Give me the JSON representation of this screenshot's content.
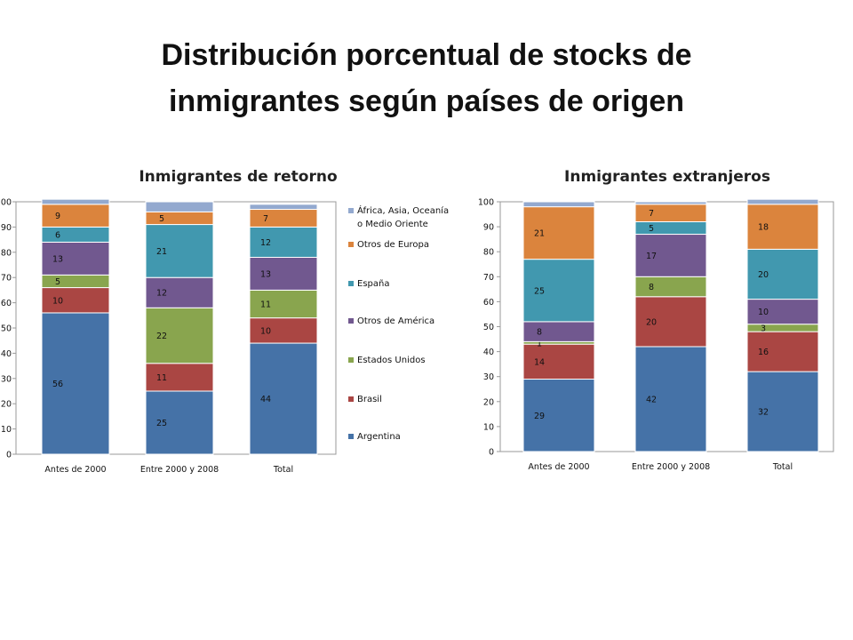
{
  "title_lines": [
    "Distribución porcentual de stocks de",
    "inmigrantes según países de origen"
  ],
  "legend": {
    "series": [
      "África, Asia, Oceanía o Medio Oriente",
      "Otros de Europa",
      "España",
      "Otros de América",
      "Estados Unidos",
      "Brasil",
      "Argentina"
    ],
    "lines": [
      [
        "África, Asia, Oceanía",
        "o Medio Oriente"
      ],
      [
        "Otros de Europa"
      ],
      [
        "España"
      ],
      [
        "Otros de América"
      ],
      [
        "Estados Unidos"
      ],
      [
        "Brasil"
      ],
      [
        "Argentina"
      ]
    ]
  },
  "chart_data": [
    {
      "type": "bar",
      "stacked": true,
      "title": "Inmigrantes de retorno",
      "categories": [
        "Antes de 2000",
        "Entre 2000 y 2008",
        "Total"
      ],
      "y_ticks": [
        "0",
        "10",
        "20",
        "30",
        "40",
        "50",
        "60",
        "70",
        "80",
        "90",
        "100"
      ],
      "ylim": [
        0,
        100
      ],
      "grid": false,
      "legend_position": "right",
      "series": [
        {
          "name": "Argentina",
          "color": "#4572A7",
          "values": [
            56,
            25,
            44
          ],
          "labels": [
            "56",
            "25",
            "44"
          ]
        },
        {
          "name": "Brasil",
          "color": "#AA4643",
          "values": [
            10,
            11,
            10
          ],
          "labels": [
            "10",
            "11",
            "10"
          ]
        },
        {
          "name": "Estados Unidos",
          "color": "#89A54E",
          "values": [
            5,
            22,
            11
          ],
          "labels": [
            "5",
            "22",
            "11"
          ]
        },
        {
          "name": "Otros de América",
          "color": "#71588F",
          "values": [
            13,
            12,
            13
          ],
          "labels": [
            "13",
            "12",
            "13"
          ]
        },
        {
          "name": "España",
          "color": "#4198AF",
          "values": [
            6,
            21,
            12
          ],
          "labels": [
            "6",
            "21",
            "12"
          ]
        },
        {
          "name": "Otros de Europa",
          "color": "#DB843D",
          "values": [
            9,
            5,
            7
          ],
          "labels": [
            "9",
            "5",
            "7"
          ]
        },
        {
          "name": "África, Asia, Oceanía o Medio Oriente",
          "color": "#93A9CF",
          "values": [
            2,
            4,
            2
          ],
          "labels": [
            "",
            "",
            ""
          ]
        }
      ]
    },
    {
      "type": "bar",
      "stacked": true,
      "title": "Inmigrantes extranjeros",
      "categories": [
        "Antes de 2000",
        "Entre 2000 y 2008",
        "Total"
      ],
      "y_ticks": [
        "0",
        "10",
        "20",
        "30",
        "40",
        "50",
        "60",
        "70",
        "80",
        "90",
        "100"
      ],
      "ylim": [
        0,
        100
      ],
      "grid": false,
      "series": [
        {
          "name": "Argentina",
          "color": "#4572A7",
          "values": [
            29,
            42,
            32
          ],
          "labels": [
            "29",
            "42",
            "32"
          ]
        },
        {
          "name": "Brasil",
          "color": "#AA4643",
          "values": [
            14,
            20,
            16
          ],
          "labels": [
            "14",
            "20",
            "16"
          ]
        },
        {
          "name": "Estados Unidos",
          "color": "#89A54E",
          "values": [
            1,
            8,
            3
          ],
          "labels": [
            "1",
            "8",
            "3"
          ]
        },
        {
          "name": "Otros de América",
          "color": "#71588F",
          "values": [
            8,
            17,
            10
          ],
          "labels": [
            "8",
            "17",
            "10"
          ]
        },
        {
          "name": "España",
          "color": "#4198AF",
          "values": [
            25,
            5,
            20
          ],
          "labels": [
            "25",
            "5",
            "20"
          ]
        },
        {
          "name": "Otros de Europa",
          "color": "#DB843D",
          "values": [
            21,
            7,
            18
          ],
          "labels": [
            "21",
            "7",
            "18"
          ]
        },
        {
          "name": "África, Asia, Oceanía o Medio Oriente",
          "color": "#93A9CF",
          "values": [
            2,
            1,
            2
          ],
          "labels": [
            "",
            "",
            ""
          ]
        }
      ]
    }
  ]
}
